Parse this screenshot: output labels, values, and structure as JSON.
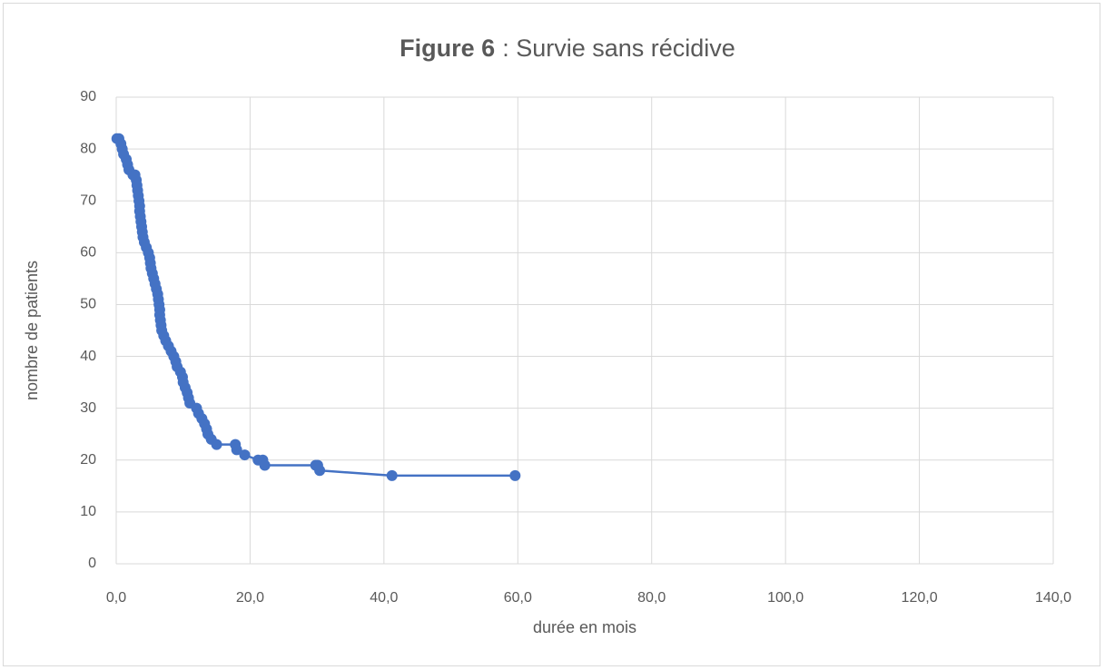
{
  "chart_data": {
    "type": "scatter-line",
    "title_parts": [
      "Figure 6",
      ": Survie sans récidive"
    ],
    "x_label": "durée en mois",
    "y_label": "nombre de patients",
    "color": "#4472c4",
    "grid": true,
    "x": [
      0.1,
      0.4,
      0.7,
      0.9,
      1.1,
      1.5,
      1.7,
      1.9,
      2.5,
      2.8,
      3.0,
      3.1,
      3.2,
      3.3,
      3.4,
      3.5,
      3.5,
      3.6,
      3.7,
      3.8,
      3.9,
      4.0,
      4.2,
      4.5,
      4.8,
      5.0,
      5.1,
      5.2,
      5.4,
      5.6,
      5.8,
      6.0,
      6.2,
      6.3,
      6.4,
      6.5,
      6.5,
      6.6,
      6.7,
      6.8,
      7.1,
      7.4,
      7.8,
      8.2,
      8.6,
      8.9,
      9.1,
      9.6,
      9.9,
      10.0,
      10.3,
      10.6,
      10.8,
      11.0,
      12.0,
      12.3,
      12.8,
      13.2,
      13.5,
      13.7,
      14.2,
      15.0,
      17.8,
      18.0,
      19.2,
      21.2,
      21.9,
      22.2,
      29.8,
      30.1,
      30.4,
      41.2,
      59.6
    ],
    "values": [
      82,
      82,
      81,
      80,
      79,
      78,
      77,
      76,
      75,
      75,
      74,
      73,
      72,
      71,
      70,
      69,
      68,
      67,
      66,
      65,
      64,
      63,
      62,
      61,
      60,
      59,
      58,
      57,
      56,
      55,
      54,
      53,
      52,
      51,
      50,
      49,
      48,
      47,
      46,
      45,
      44,
      43,
      42,
      41,
      40,
      39,
      38,
      37,
      36,
      35,
      34,
      33,
      32,
      31,
      30,
      29,
      28,
      27,
      26,
      25,
      24,
      23,
      23,
      22,
      21,
      20,
      20,
      19,
      19,
      19,
      18,
      17,
      17
    ],
    "xlim": [
      0,
      140
    ],
    "xticks": [
      {
        "value": 0,
        "label": "0,0"
      },
      {
        "value": 20,
        "label": "20,0"
      },
      {
        "value": 40,
        "label": "40,0"
      },
      {
        "value": 60,
        "label": "60,0"
      },
      {
        "value": 80,
        "label": "80,0"
      },
      {
        "value": 100,
        "label": "100,0"
      },
      {
        "value": 120,
        "label": "120,0"
      },
      {
        "value": 140,
        "label": "140,0"
      }
    ],
    "ylim": [
      0,
      90
    ],
    "yticks": [
      0,
      10,
      20,
      30,
      40,
      50,
      60,
      70,
      80,
      90
    ]
  }
}
